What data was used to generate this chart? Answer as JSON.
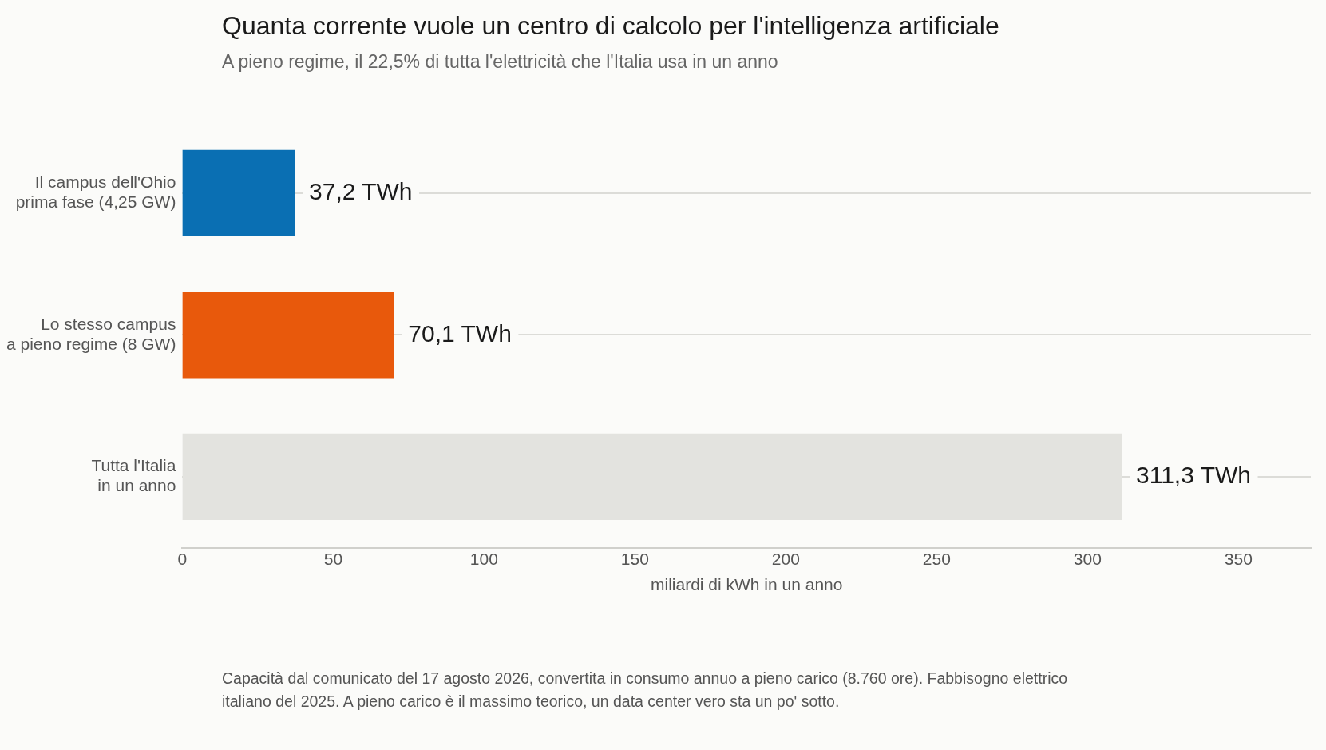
{
  "chart_data": {
    "type": "bar",
    "orientation": "horizontal",
    "title": "Quanta corrente vuole un centro di calcolo per l'intelligenza artificiale",
    "subtitle": "A pieno regime, il 22,5% di tutta l'elettricità che l'Italia usa in un anno",
    "categories": [
      "Il campus dell'Ohio\nprima fase (4,25 GW)",
      "Lo stesso campus\na pieno regime (8 GW)",
      "Tutta l'Italia\nin un anno"
    ],
    "values": [
      37.2,
      70.1,
      311.3
    ],
    "colors": [
      "#0a6fb3",
      "#e8590c",
      "#e3e3df"
    ],
    "value_labels": [
      "37,2 TWh",
      "70,1 TWh",
      "311,3 TWh"
    ],
    "xlabel": "miliardi di kWh in un anno",
    "xlim": [
      0,
      374
    ],
    "xticks": [
      0,
      50,
      100,
      150,
      200,
      250,
      300,
      350
    ],
    "grid": "y",
    "legend": false,
    "annotations": [
      "Capacità dal comunicato del 17 agosto 2026, convertita in consumo annuo a pieno carico (8.760 ore).",
      "Fabbisogno elettrico italiano del 2025. A pieno carico è il massimo teorico, un data center vero sta un po' sotto."
    ]
  }
}
